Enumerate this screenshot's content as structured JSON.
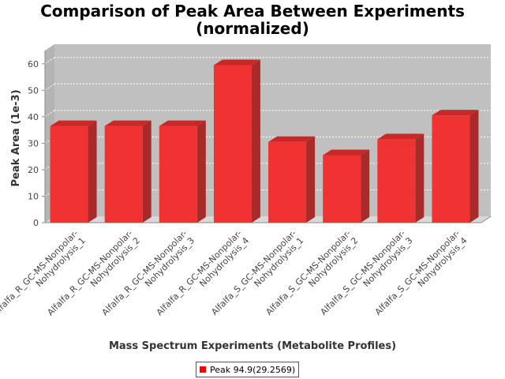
{
  "chart_data": {
    "type": "bar",
    "title_line1": "Comparison of Peak Area Between Experiments",
    "title_line2": "(normalized)",
    "xlabel": "Mass Spectrum Experiments (Metabolite Profiles)",
    "ylabel": "Peak Area (1e-3)",
    "ylim": [
      0,
      65
    ],
    "yticks": [
      0,
      10,
      20,
      30,
      40,
      50,
      60
    ],
    "grid": true,
    "legend_position": "bottom",
    "categories": [
      [
        "Alfalfa_R_GC-MS-Nonpolar-",
        "Nohydrolysis_1"
      ],
      [
        "Alfalfa_R_GC-MS-Nonpolar-",
        "Nohydrolysis_2"
      ],
      [
        "Alfalfa_R_GC-MS-Nonpolar-",
        "Nohydrolysis_3"
      ],
      [
        "Alfalfa_R_GC-MS-Nonpolar-",
        "Nohydrolysis_4"
      ],
      [
        "Alfalfa_S_GC-MS-Nonpolar-",
        "Nohydrolysis_1"
      ],
      [
        "Alfalfa_S_GC-MS-Nonpolar-",
        "Nohydrolysis_2"
      ],
      [
        "Alfalfa_S_GC-MS-Nonpolar-",
        "Nohydrolysis_3"
      ],
      [
        "Alfalfa_S_GC-MS-Nonpolar-",
        "Nohydrolysis_4"
      ]
    ],
    "series": [
      {
        "name": "Peak 94.9(29.2569)",
        "color": "#ff0000",
        "values": [
          36.5,
          36.5,
          36.5,
          59.5,
          30.5,
          25.5,
          31.5,
          40.5
        ]
      }
    ],
    "colors": {
      "plot_background": "#c0c0c0",
      "plot_wall": "#b4b4b4",
      "bar_front": "#f03232",
      "bar_top": "#c82828",
      "bar_side": "#a82a2a"
    }
  }
}
